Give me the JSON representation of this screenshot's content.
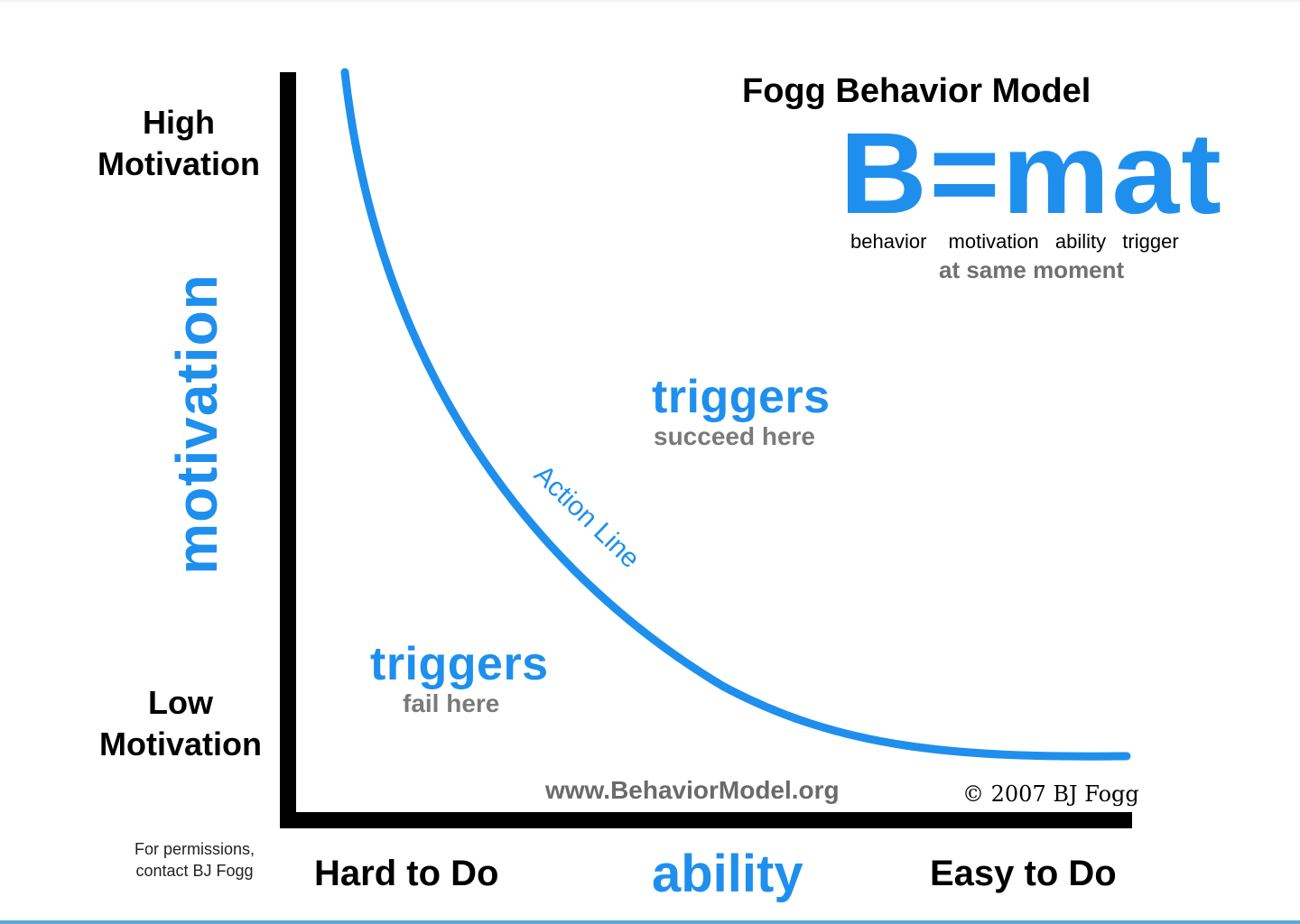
{
  "title": "Fogg Behavior Model",
  "formula": {
    "text": "B=mat",
    "terms": [
      "behavior",
      "motivation",
      "ability",
      "trigger"
    ],
    "note": "at same moment"
  },
  "y_axis": {
    "title": "motivation",
    "high_label_line1": "High",
    "high_label_line2": "Motivation",
    "low_label_line1": "Low",
    "low_label_line2": "Motivation"
  },
  "x_axis": {
    "title": "ability",
    "left_label": "Hard to Do",
    "right_label": "Easy to Do"
  },
  "zones": {
    "succeed": {
      "word": "triggers",
      "sub": "succeed here"
    },
    "fail": {
      "word": "triggers",
      "sub": "fail here"
    }
  },
  "curve": {
    "label": "Action Line",
    "color": "#1f8fee"
  },
  "footer": {
    "website": "www.BehaviorModel.org",
    "copyright": "© 2007 BJ Fogg",
    "permissions_line1": "For permissions,",
    "permissions_line2": "contact BJ Fogg"
  },
  "colors": {
    "accent_blue": "#1f8fee",
    "gray_text": "#707070",
    "axis": "#000000"
  }
}
